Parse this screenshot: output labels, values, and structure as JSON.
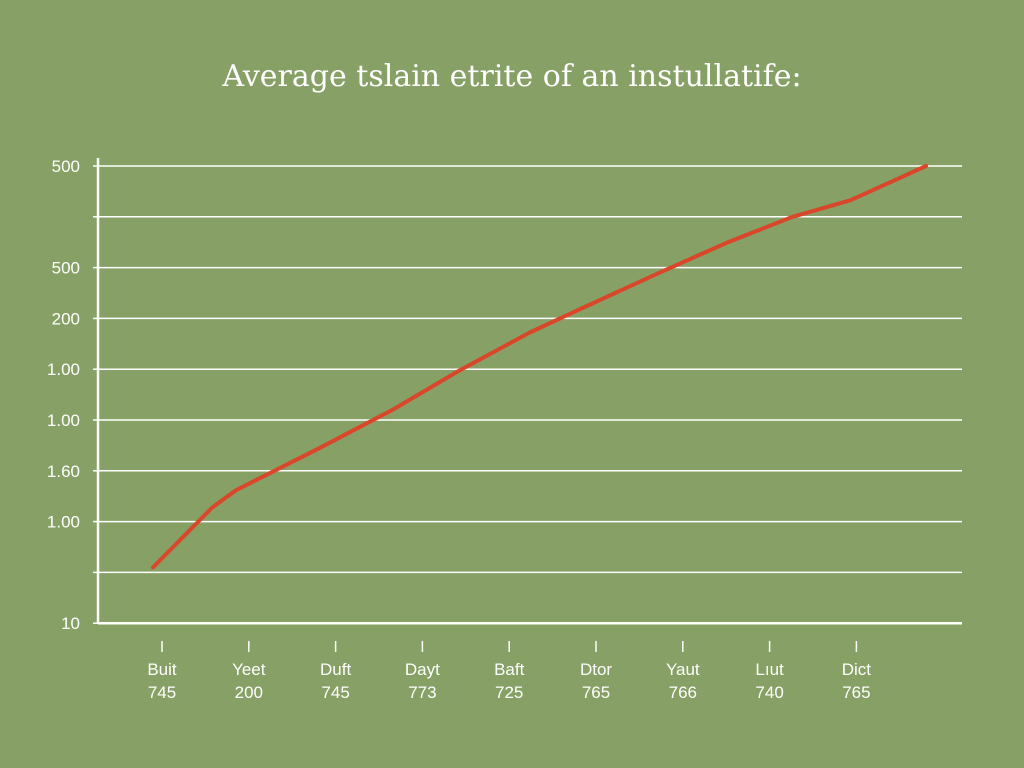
{
  "chart_data": {
    "type": "line",
    "title": "Average tslain etrite of an instullatife:",
    "xlabel": "",
    "ylabel": "",
    "grid": true,
    "y_tick_labels": [
      "500",
      "",
      "500",
      "200",
      "1.00",
      "1.00",
      "1.60",
      "1.00",
      "",
      "10"
    ],
    "categories": [
      {
        "name": "Buit",
        "value": "745"
      },
      {
        "name": "Yeet",
        "value": "200"
      },
      {
        "name": "Duft",
        "value": "745"
      },
      {
        "name": "Dayt",
        "value": "773"
      },
      {
        "name": "Baft",
        "value": "725"
      },
      {
        "name": "Dtor",
        "value": "765"
      },
      {
        "name": "Yaut",
        "value": "766"
      },
      {
        "name": "Lıut",
        "value": "740"
      },
      {
        "name": "Dict",
        "value": "765"
      }
    ],
    "series": [
      {
        "color": "#d9462a",
        "points": [
          [
            0.0,
            0.06
          ],
          [
            0.58,
            0.2
          ],
          [
            0.81,
            0.24
          ],
          [
            1.64,
            0.34
          ],
          [
            2.36,
            0.43
          ],
          [
            3.0,
            0.52
          ],
          [
            3.7,
            0.61
          ],
          [
            4.15,
            0.66
          ],
          [
            4.97,
            0.75
          ],
          [
            5.63,
            0.82
          ],
          [
            6.27,
            0.88
          ],
          [
            6.85,
            0.92
          ],
          [
            7.59,
            1.0
          ]
        ]
      }
    ],
    "xlim": [
      0,
      7.6
    ],
    "ylim": [
      0,
      1.0
    ]
  },
  "colors": {
    "background": "#87a065",
    "grid": "#ffffff",
    "line": "#d9462a"
  }
}
